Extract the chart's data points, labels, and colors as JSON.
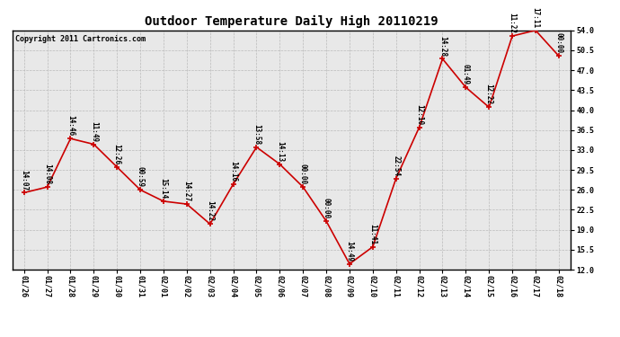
{
  "title": "Outdoor Temperature Daily High 20110219",
  "copyright": "Copyright 2011 Cartronics.com",
  "fig_background": "#ffffff",
  "plot_background": "#e8e8e8",
  "grid_color": "#bbbbbb",
  "line_color": "#cc0000",
  "marker_color": "#cc0000",
  "text_color": "#000000",
  "dates": [
    "01/26",
    "01/27",
    "01/28",
    "01/29",
    "01/30",
    "01/31",
    "02/01",
    "02/02",
    "02/03",
    "02/04",
    "02/05",
    "02/06",
    "02/07",
    "02/08",
    "02/09",
    "02/10",
    "02/11",
    "02/12",
    "02/13",
    "02/14",
    "02/15",
    "02/16",
    "02/17",
    "02/18"
  ],
  "temps": [
    25.5,
    26.5,
    35.0,
    34.0,
    30.0,
    26.0,
    24.0,
    23.5,
    20.0,
    27.0,
    33.5,
    30.5,
    26.5,
    20.5,
    13.0,
    16.0,
    28.0,
    37.0,
    49.0,
    44.0,
    40.5,
    53.0,
    54.0,
    49.5
  ],
  "times": [
    "14:07",
    "14:08",
    "14:46",
    "11:49",
    "12:26",
    "00:59",
    "15:14",
    "14:27",
    "14:22",
    "14:16",
    "13:58",
    "14:13",
    "00:00",
    "00:00",
    "14:49",
    "11:41",
    "22:54",
    "12:10",
    "14:28",
    "01:49",
    "12:22",
    "11:22",
    "17:11",
    "00:00"
  ],
  "ylim": [
    12.0,
    54.0
  ],
  "yticks": [
    12.0,
    15.5,
    19.0,
    22.5,
    26.0,
    29.5,
    33.0,
    36.5,
    40.0,
    43.5,
    47.0,
    50.5,
    54.0
  ],
  "title_fontsize": 10,
  "tick_fontsize": 6,
  "annot_fontsize": 5.5,
  "copyright_fontsize": 6
}
